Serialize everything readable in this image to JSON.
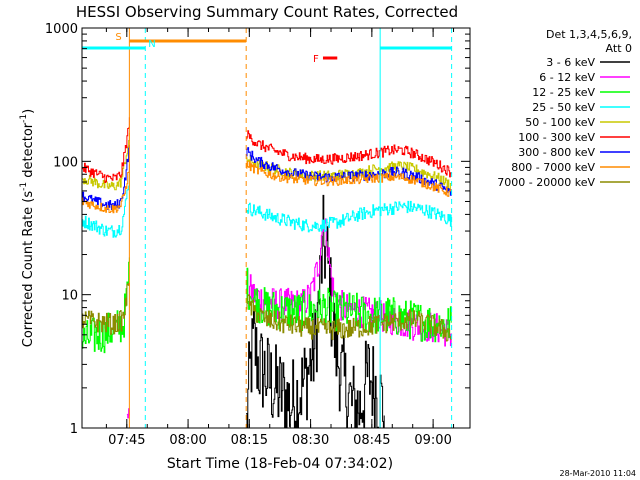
{
  "chart_data": {
    "type": "line",
    "title": "HESSI Observing Summary Count Rates, Corrected",
    "xlabel": "Start Time (18-Feb-04 07:34:02)",
    "ylabel_parts": {
      "a": "Corrected Count Rate (s",
      "b": "-1",
      "c": " detector",
      "d": "-1",
      "e": ")"
    },
    "y_scale": "log",
    "ylim": [
      1,
      1000
    ],
    "xlim_minutes": [
      0,
      95
    ],
    "x_ticks": [
      {
        "label": "07:45",
        "min": 10.97
      },
      {
        "label": "08:00",
        "min": 25.97
      },
      {
        "label": "08:15",
        "min": 40.97
      },
      {
        "label": "08:30",
        "min": 55.97
      },
      {
        "label": "08:45",
        "min": 70.97
      },
      {
        "label": "09:00",
        "min": 85.97
      }
    ],
    "y_ticks": [
      {
        "label": "1",
        "value": 1
      },
      {
        "label": "10",
        "value": 10
      },
      {
        "label": "100",
        "value": 100
      },
      {
        "label": "1000",
        "value": 1000
      }
    ],
    "legend": {
      "header1": "Det 1,3,4,5,6,9,",
      "header2": "Att 0",
      "entries": [
        {
          "label": "3 - 6 keV",
          "color": "#000000"
        },
        {
          "label": "6 - 12 keV",
          "color": "#ff00ff"
        },
        {
          "label": "12 - 25 keV",
          "color": "#00ff00"
        },
        {
          "label": "25 - 50 keV",
          "color": "#00ffff"
        },
        {
          "label": "50 - 100 keV",
          "color": "#c8c800"
        },
        {
          "label": "100 - 300 keV",
          "color": "#ff0000"
        },
        {
          "label": "300 - 800 keV",
          "color": "#0000ff"
        },
        {
          "label": "800 - 7000 keV",
          "color": "#ff8c00"
        },
        {
          "label": "7000 - 20000 keV",
          "color": "#8b8b00"
        }
      ]
    },
    "flags": [
      {
        "label": "S",
        "color": "#ff8c00",
        "start_min": 11.6,
        "end_min": 40.2,
        "level": "top"
      },
      {
        "label": "N",
        "color": "#00ffff",
        "start_min": 0,
        "end_min": 15.5,
        "level": "upper"
      },
      {
        "label": "",
        "color": "#00ffff",
        "start_min": 73.0,
        "end_min": 90.5,
        "level": "upper"
      },
      {
        "label": "F",
        "color": "#ff0000",
        "start_min": 59.0,
        "end_min": 62.5,
        "level": "mid"
      }
    ],
    "vlines": [
      {
        "min": 11.6,
        "color": "#ff8c00",
        "style": "solid"
      },
      {
        "min": 15.5,
        "color": "#00ffff",
        "style": "dashed"
      },
      {
        "min": 40.2,
        "color": "#ff8c00",
        "style": "dashed"
      },
      {
        "min": 73.0,
        "color": "#00ffff",
        "style": "solid"
      },
      {
        "min": 90.5,
        "color": "#00ffff",
        "style": "dashed"
      }
    ],
    "series": [
      {
        "name": "3 - 6 keV",
        "color": "#000000",
        "noise": 0.35,
        "segments": [
          [
            [
              40.2,
              1.0
            ],
            [
              41,
              2.5
            ],
            [
              42,
              4.5
            ],
            [
              43,
              3
            ],
            [
              45,
              2.5
            ],
            [
              47,
              2
            ],
            [
              49,
              1.8
            ],
            [
              51,
              1.5
            ],
            [
              53,
              1.8
            ],
            [
              55,
              2.5
            ],
            [
              57,
              4
            ],
            [
              58,
              10
            ],
            [
              59,
              25
            ],
            [
              60,
              18
            ],
            [
              61,
              8
            ],
            [
              62,
              4
            ],
            [
              64,
              2.2
            ],
            [
              66,
              1.5
            ],
            [
              68,
              1.4
            ],
            [
              70,
              2.5
            ],
            [
              72,
              2
            ],
            [
              74,
              1.3
            ]
          ]
        ]
      },
      {
        "name": "6 - 12 keV",
        "color": "#ff00ff",
        "noise": 0.12,
        "segments": [
          [
            [
              11.0,
              1.0
            ],
            [
              11.5,
              2
            ],
            [
              11.6,
              1.0
            ]
          ],
          [
            [
              40.2,
              12
            ],
            [
              42,
              10
            ],
            [
              45,
              9
            ],
            [
              48,
              8.5
            ],
            [
              51,
              8.5
            ],
            [
              54,
              8.5
            ],
            [
              56,
              10
            ],
            [
              58,
              18
            ],
            [
              59,
              38
            ],
            [
              60,
              25
            ],
            [
              61,
              13
            ],
            [
              62,
              9
            ],
            [
              64,
              8
            ],
            [
              68,
              7.5
            ],
            [
              72,
              7
            ],
            [
              76,
              6.5
            ],
            [
              80,
              6
            ],
            [
              84,
              5.8
            ],
            [
              88,
              5.5
            ],
            [
              90.5,
              5
            ]
          ]
        ]
      },
      {
        "name": "12 - 25 keV",
        "color": "#00ff00",
        "noise": 0.15,
        "segments": [
          [
            [
              0,
              4.5
            ],
            [
              4,
              5
            ],
            [
              8,
              5.5
            ],
            [
              10,
              6
            ],
            [
              11.0,
              10
            ],
            [
              11.6,
              18
            ]
          ],
          [
            [
              40.2,
              12
            ],
            [
              42,
              9
            ],
            [
              45,
              8
            ],
            [
              50,
              7.5
            ],
            [
              55,
              7.5
            ],
            [
              58,
              8
            ],
            [
              60,
              8
            ],
            [
              62,
              7.5
            ],
            [
              66,
              7.5
            ],
            [
              70,
              7
            ],
            [
              75,
              7
            ],
            [
              80,
              6.5
            ],
            [
              85,
              6.2
            ],
            [
              90.5,
              6
            ]
          ]
        ]
      },
      {
        "name": "25 - 50 keV",
        "color": "#00ffff",
        "noise": 0.05,
        "segments": [
          [
            [
              0,
              36
            ],
            [
              3,
              33
            ],
            [
              6,
              30
            ],
            [
              8,
              30
            ],
            [
              9.5,
              32
            ],
            [
              10.5,
              45
            ],
            [
              11.6,
              80
            ]
          ],
          [
            [
              40.2,
              45
            ],
            [
              43,
              42
            ],
            [
              47,
              38
            ],
            [
              51,
              35
            ],
            [
              55,
              33
            ],
            [
              58,
              33
            ],
            [
              61,
              34
            ],
            [
              64,
              36
            ],
            [
              68,
              40
            ],
            [
              72,
              43
            ],
            [
              75,
              44
            ],
            [
              78,
              46
            ],
            [
              81,
              45
            ],
            [
              84,
              43
            ],
            [
              87,
              40
            ],
            [
              90.5,
              36
            ]
          ]
        ]
      },
      {
        "name": "50 - 100 keV",
        "color": "#c8c800",
        "noise": 0.04,
        "segments": [
          [
            [
              0,
              75
            ],
            [
              3,
              70
            ],
            [
              6,
              65
            ],
            [
              8,
              65
            ],
            [
              9.5,
              70
            ],
            [
              10.5,
              100
            ],
            [
              11.6,
              150
            ]
          ],
          [
            [
              40.2,
              105
            ],
            [
              43,
              95
            ],
            [
              47,
              88
            ],
            [
              51,
              82
            ],
            [
              55,
              78
            ],
            [
              58,
              78
            ],
            [
              61,
              78
            ],
            [
              64,
              80
            ],
            [
              68,
              82
            ],
            [
              72,
              88
            ],
            [
              75,
              90
            ],
            [
              78,
              92
            ],
            [
              81,
              88
            ],
            [
              84,
              82
            ],
            [
              87,
              75
            ],
            [
              90.5,
              66
            ]
          ]
        ]
      },
      {
        "name": "100 - 300 keV",
        "color": "#ff0000",
        "noise": 0.04,
        "segments": [
          [
            [
              0,
              90
            ],
            [
              3,
              82
            ],
            [
              6,
              75
            ],
            [
              8,
              74
            ],
            [
              9.5,
              80
            ],
            [
              10.5,
              120
            ],
            [
              11.6,
              200
            ]
          ],
          [
            [
              40.2,
              160
            ],
            [
              43,
              135
            ],
            [
              47,
              120
            ],
            [
              51,
              110
            ],
            [
              55,
              105
            ],
            [
              58,
              103
            ],
            [
              61,
              104
            ],
            [
              64,
              106
            ],
            [
              68,
              110
            ],
            [
              72,
              115
            ],
            [
              75,
              120
            ],
            [
              78,
              122
            ],
            [
              81,
              115
            ],
            [
              84,
              105
            ],
            [
              87,
              95
            ],
            [
              90.5,
              82
            ]
          ]
        ]
      },
      {
        "name": "300 - 800 keV",
        "color": "#0000ff",
        "noise": 0.04,
        "segments": [
          [
            [
              0,
              55
            ],
            [
              3,
              50
            ],
            [
              6,
              47
            ],
            [
              8,
              46
            ],
            [
              9.5,
              50
            ],
            [
              10.5,
              75
            ],
            [
              11.6,
              130
            ]
          ],
          [
            [
              40.2,
              120
            ],
            [
              43,
              100
            ],
            [
              47,
              90
            ],
            [
              51,
              82
            ],
            [
              55,
              78
            ],
            [
              58,
              76
            ],
            [
              61,
              76
            ],
            [
              64,
              77
            ],
            [
              68,
              78
            ],
            [
              72,
              80
            ],
            [
              75,
              82
            ],
            [
              78,
              83
            ],
            [
              81,
              78
            ],
            [
              84,
              72
            ],
            [
              87,
              66
            ],
            [
              90.5,
              58
            ]
          ]
        ]
      },
      {
        "name": "800 - 7000 keV",
        "color": "#ff8c00",
        "noise": 0.035,
        "segments": [
          [
            [
              0,
              50
            ],
            [
              3,
              47
            ],
            [
              6,
              44
            ],
            [
              8,
              44
            ],
            [
              9.5,
              47
            ],
            [
              10.5,
              60
            ],
            [
              11.6,
              90
            ]
          ],
          [
            [
              40.2,
              95
            ],
            [
              43,
              85
            ],
            [
              47,
              78
            ],
            [
              51,
              74
            ],
            [
              55,
              72
            ],
            [
              58,
              71
            ],
            [
              61,
              71
            ],
            [
              64,
              72
            ],
            [
              68,
              73
            ],
            [
              72,
              75
            ],
            [
              75,
              76
            ],
            [
              78,
              76
            ],
            [
              81,
              73
            ],
            [
              84,
              68
            ],
            [
              87,
              63
            ],
            [
              90.5,
              57
            ]
          ]
        ]
      },
      {
        "name": "7000 - 20000 keV",
        "color": "#8b8b00",
        "noise": 0.08,
        "segments": [
          [
            [
              0,
              6.5
            ],
            [
              4,
              6.2
            ],
            [
              8,
              6
            ],
            [
              10,
              6.5
            ],
            [
              11.0,
              10
            ],
            [
              11.6,
              14
            ]
          ],
          [
            [
              40.2,
              9
            ],
            [
              42,
              7.5
            ],
            [
              45,
              6.5
            ],
            [
              50,
              6
            ],
            [
              55,
              5.6
            ],
            [
              60,
              5.5
            ],
            [
              65,
              5.5
            ],
            [
              70,
              5.8
            ],
            [
              75,
              6.2
            ],
            [
              80,
              6.5
            ],
            [
              85,
              6
            ],
            [
              88,
              5.5
            ],
            [
              90.5,
              5
            ]
          ]
        ]
      }
    ]
  },
  "footer": {
    "timestamp": "28-Mar-2010 11:04"
  }
}
